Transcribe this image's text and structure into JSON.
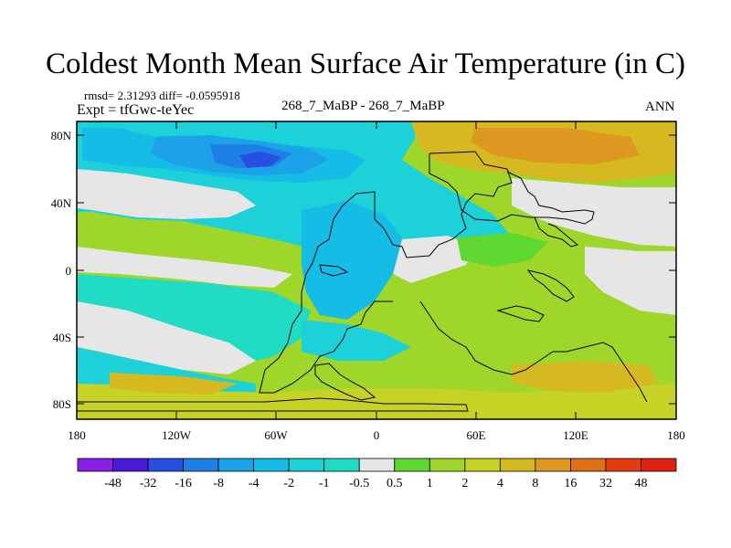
{
  "title": "Coldest Month Mean Surface Air Temperature (in C)",
  "stats": "rmsd= 2.31293 diff= -0.0595918",
  "experiment": "Expt = tfGwc-teYec",
  "runs": "268_7_MaBP - 268_7_MaBP",
  "season": "ANN",
  "lat_ticks": [
    "80N",
    "40N",
    "0",
    "40S",
    "80S"
  ],
  "lon_ticks": [
    "180",
    "120W",
    "60W",
    "0",
    "60E",
    "120E",
    "180"
  ],
  "colorbar": {
    "labels": [
      "-48",
      "-32",
      "-16",
      "-8",
      "-4",
      "-2",
      "-1",
      "-0.5",
      "0.5",
      "1",
      "2",
      "4",
      "8",
      "16",
      "32",
      "48"
    ],
    "colors": [
      "#8a1fe8",
      "#4a1ad8",
      "#2650e0",
      "#1e7fe6",
      "#1ba2e8",
      "#14bce6",
      "#1cd2d8",
      "#20dcc4",
      "#e6e6e6",
      "#5fd832",
      "#9ed62a",
      "#c6d226",
      "#d6b820",
      "#dc9820",
      "#e07018",
      "#e23c10",
      "#e02010"
    ]
  },
  "map_colors": {
    "ocean_bg": "#9ed62a",
    "neutral": "#e6e6e6",
    "light_cool": "#20dcc4",
    "cool": "#1cd2d8",
    "cooler": "#14bce6",
    "cold": "#1ba2e8",
    "colder": "#1e7fe6",
    "coldest": "#2650e0",
    "warm": "#c6d226",
    "warmer": "#d6b820",
    "hot": "#dc9820",
    "light_warm": "#5fd832"
  }
}
